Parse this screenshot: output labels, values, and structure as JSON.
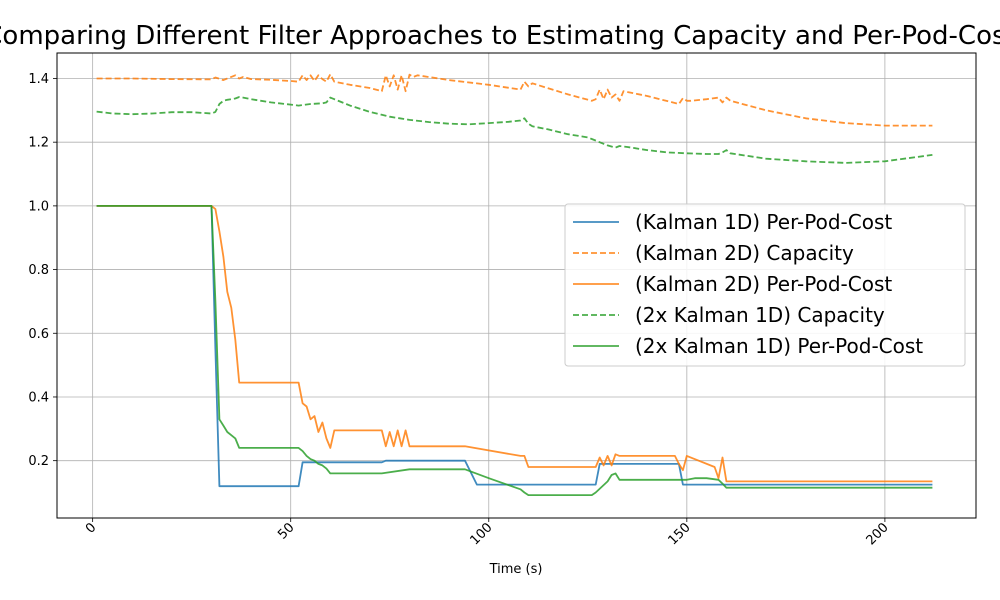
{
  "chart_data": {
    "type": "line",
    "title": "Comparing Different Filter Approaches to Estimating Capacity and Per-Pod-Cost",
    "xlabel": "Time (s)",
    "ylabel": "",
    "xlim": [
      -9,
      223
    ],
    "ylim": [
      0.02,
      1.48
    ],
    "xticks": [
      0,
      50,
      100,
      150,
      200
    ],
    "xtick_labels": [
      "0",
      "50",
      "100",
      "150",
      "200"
    ],
    "yticks": [
      0.2,
      0.4,
      0.6,
      0.8,
      1.0,
      1.2,
      1.4
    ],
    "ytick_labels": [
      "0.2",
      "0.4",
      "0.6",
      "0.8",
      "1.0",
      "1.2",
      "1.4"
    ],
    "grid": true,
    "legend_position": "center-right",
    "series": [
      {
        "name": "(Kalman 1D) Per-Pod-Cost",
        "color": "#1f77b4",
        "style": "solid",
        "x": [
          1,
          30,
          31,
          32,
          52,
          53,
          73,
          74,
          94,
          97,
          127,
          128,
          148,
          149,
          160,
          212
        ],
        "y": [
          1.0,
          1.0,
          0.55,
          0.12,
          0.12,
          0.195,
          0.195,
          0.2,
          0.2,
          0.125,
          0.125,
          0.19,
          0.19,
          0.125,
          0.125,
          0.125
        ]
      },
      {
        "name": "(Kalman 2D) Capacity",
        "color": "#ff7f0e",
        "style": "dashed",
        "x": [
          1,
          10,
          20,
          30,
          31,
          33,
          35,
          36,
          37,
          38,
          40,
          45,
          50,
          52,
          53,
          54,
          55,
          56,
          57,
          58,
          59,
          60,
          61,
          65,
          70,
          73,
          74,
          75,
          76,
          77,
          78,
          79,
          80,
          81,
          82,
          90,
          100,
          108,
          109,
          110,
          111,
          120,
          126,
          127,
          128,
          129,
          130,
          131,
          132,
          133,
          134,
          140,
          148,
          149,
          150,
          151,
          155,
          158,
          159,
          160,
          161,
          170,
          180,
          190,
          200,
          212
        ],
        "y": [
          1.4,
          1.4,
          1.398,
          1.397,
          1.403,
          1.395,
          1.405,
          1.41,
          1.4,
          1.405,
          1.398,
          1.396,
          1.392,
          1.39,
          1.41,
          1.395,
          1.41,
          1.392,
          1.41,
          1.398,
          1.39,
          1.413,
          1.39,
          1.38,
          1.37,
          1.36,
          1.41,
          1.375,
          1.41,
          1.365,
          1.41,
          1.36,
          1.412,
          1.405,
          1.41,
          1.395,
          1.38,
          1.365,
          1.39,
          1.375,
          1.385,
          1.35,
          1.33,
          1.335,
          1.365,
          1.335,
          1.365,
          1.34,
          1.35,
          1.33,
          1.36,
          1.345,
          1.32,
          1.338,
          1.33,
          1.33,
          1.335,
          1.34,
          1.325,
          1.34,
          1.33,
          1.3,
          1.275,
          1.26,
          1.252,
          1.252
        ]
      },
      {
        "name": "(Kalman 2D) Per-Pod-Cost",
        "color": "#ff7f0e",
        "style": "solid",
        "x": [
          1,
          30,
          31,
          32,
          33,
          34,
          35,
          36,
          37,
          52,
          53,
          54,
          55,
          56,
          57,
          58,
          59,
          60,
          61,
          73,
          74,
          75,
          76,
          77,
          78,
          79,
          80,
          94,
          108,
          109,
          110,
          111,
          127,
          128,
          129,
          130,
          131,
          132,
          133,
          147,
          148,
          149,
          150,
          157,
          158,
          159,
          160,
          212
        ],
        "y": [
          1.0,
          1.0,
          0.99,
          0.92,
          0.84,
          0.73,
          0.68,
          0.58,
          0.445,
          0.445,
          0.38,
          0.37,
          0.33,
          0.34,
          0.29,
          0.32,
          0.27,
          0.24,
          0.295,
          0.295,
          0.245,
          0.29,
          0.245,
          0.295,
          0.245,
          0.295,
          0.245,
          0.245,
          0.215,
          0.215,
          0.18,
          0.18,
          0.18,
          0.21,
          0.185,
          0.215,
          0.185,
          0.22,
          0.215,
          0.215,
          0.19,
          0.17,
          0.215,
          0.18,
          0.145,
          0.21,
          0.135,
          0.135
        ]
      },
      {
        "name": "(2x Kalman 1D) Capacity",
        "color": "#2ca02c",
        "style": "dashed",
        "x": [
          1,
          5,
          10,
          15,
          20,
          25,
          30,
          31,
          32,
          33,
          34,
          35,
          36,
          37,
          38,
          40,
          45,
          50,
          52,
          55,
          58,
          59,
          60,
          61,
          65,
          70,
          75,
          80,
          85,
          90,
          95,
          100,
          105,
          108,
          109,
          110,
          111,
          115,
          120,
          125,
          126,
          130,
          132,
          133,
          135,
          140,
          145,
          150,
          155,
          158,
          159,
          160,
          161,
          170,
          180,
          190,
          200,
          212
        ],
        "y": [
          1.296,
          1.29,
          1.288,
          1.29,
          1.294,
          1.294,
          1.29,
          1.295,
          1.32,
          1.33,
          1.333,
          1.335,
          1.337,
          1.342,
          1.34,
          1.335,
          1.325,
          1.318,
          1.315,
          1.32,
          1.322,
          1.325,
          1.34,
          1.335,
          1.315,
          1.295,
          1.28,
          1.27,
          1.263,
          1.258,
          1.256,
          1.26,
          1.264,
          1.268,
          1.275,
          1.258,
          1.25,
          1.24,
          1.225,
          1.215,
          1.21,
          1.19,
          1.183,
          1.188,
          1.185,
          1.175,
          1.168,
          1.165,
          1.163,
          1.163,
          1.168,
          1.175,
          1.165,
          1.148,
          1.14,
          1.135,
          1.14,
          1.16
        ]
      },
      {
        "name": "(2x Kalman 1D) Per-Pod-Cost",
        "color": "#2ca02c",
        "style": "solid",
        "x": [
          1,
          30,
          31,
          32,
          33,
          34,
          35,
          36,
          37,
          52,
          53,
          54,
          55,
          56,
          57,
          58,
          59,
          60,
          73,
          80,
          94,
          100,
          108,
          109,
          110,
          126,
          127,
          130,
          131,
          132,
          133,
          147,
          148,
          150,
          152,
          155,
          158,
          159,
          160,
          212
        ],
        "y": [
          1.0,
          1.0,
          0.7,
          0.33,
          0.31,
          0.29,
          0.28,
          0.27,
          0.24,
          0.24,
          0.23,
          0.215,
          0.205,
          0.2,
          0.19,
          0.185,
          0.175,
          0.16,
          0.16,
          0.173,
          0.173,
          0.145,
          0.11,
          0.1,
          0.092,
          0.092,
          0.1,
          0.135,
          0.155,
          0.16,
          0.14,
          0.14,
          0.14,
          0.14,
          0.145,
          0.145,
          0.14,
          0.128,
          0.115,
          0.115
        ]
      }
    ]
  }
}
